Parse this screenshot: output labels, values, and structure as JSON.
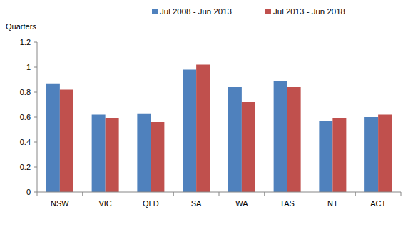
{
  "chart_data": {
    "type": "bar",
    "y_label": "Quarters",
    "categories": [
      "NSW",
      "VIC",
      "QLD",
      "SA",
      "WA",
      "TAS",
      "NT",
      "ACT"
    ],
    "series": [
      {
        "name": "Jul 2008 - Jun 2013",
        "color": "#4f81bd",
        "values": [
          0.87,
          0.62,
          0.63,
          0.98,
          0.84,
          0.89,
          0.57,
          0.6
        ]
      },
      {
        "name": "Jul 2013 - Jun 2018",
        "color": "#c0504d",
        "values": [
          0.82,
          0.59,
          0.56,
          1.02,
          0.72,
          0.84,
          0.59,
          0.62
        ]
      }
    ],
    "ylim": [
      0,
      1.2
    ],
    "yticks": [
      0,
      0.2,
      0.4,
      0.6,
      0.8,
      1,
      1.2
    ],
    "grid": false,
    "legend": "top"
  }
}
